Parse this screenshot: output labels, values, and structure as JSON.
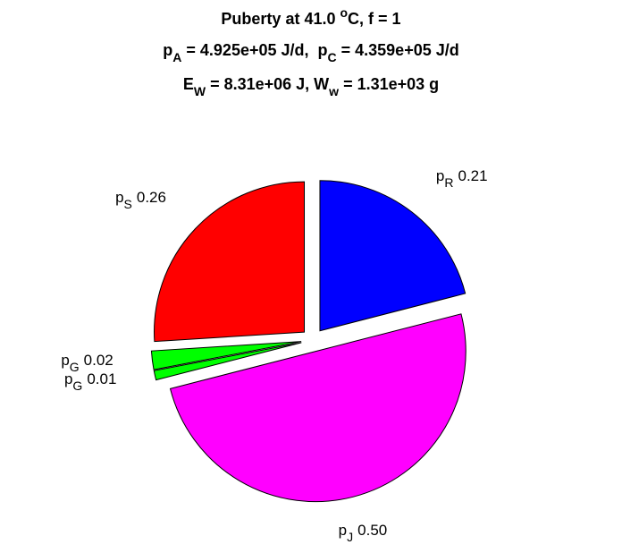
{
  "chart_data": {
    "type": "pie",
    "title": [
      [
        {
          "text": "Puberty at 41.0 "
        },
        {
          "text": "o",
          "pos": "sup"
        },
        {
          "text": "C, f = 1"
        }
      ],
      [
        {
          "text": "p"
        },
        {
          "text": "A",
          "pos": "sub"
        },
        {
          "text": " = 4.925e+05 J/d,  p"
        },
        {
          "text": "C",
          "pos": "sub"
        },
        {
          "text": " = 4.359e+05 J/d"
        }
      ],
      [
        {
          "text": "E"
        },
        {
          "text": "W",
          "pos": "sub"
        },
        {
          "text": " = 8.31e+06 J, W"
        },
        {
          "text": "w",
          "pos": "sub"
        },
        {
          "text": " = 1.31e+03 g"
        }
      ]
    ],
    "labels": [
      {
        "symbol": "p",
        "subscript": "R"
      },
      {
        "symbol": "p",
        "subscript": "J"
      },
      {
        "symbol": "p",
        "subscript": "G"
      },
      {
        "symbol": "p",
        "subscript": "G"
      },
      {
        "symbol": "p",
        "subscript": "S"
      }
    ],
    "values": [
      0.21,
      0.5,
      0.01,
      0.02,
      0.26
    ],
    "value_labels": [
      "0.21",
      "0.50",
      "0.01",
      "0.02",
      "0.26"
    ],
    "colors": [
      "#0000ff",
      "#ff00ff",
      "#00ff00",
      "#00ff00",
      "#ff0000"
    ],
    "exploded": true,
    "start_angle": 90,
    "direction": "clockwise"
  }
}
